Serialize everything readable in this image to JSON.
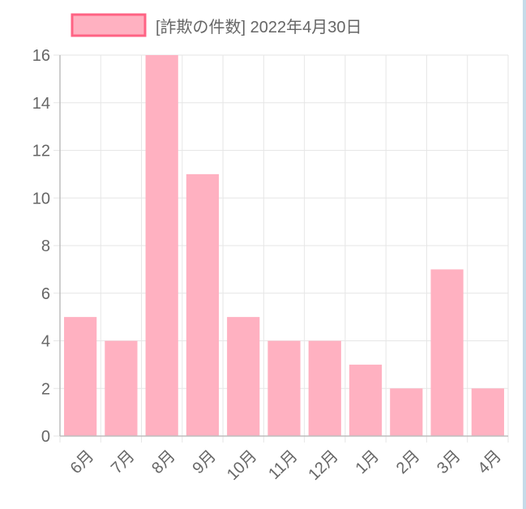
{
  "colors": {
    "bar_fill": "#ffb1c1",
    "bar_stroke": "#ff6384",
    "grid": "#e6e6e6",
    "axis": "#bdbdbd",
    "text": "#666666"
  },
  "chart_data": {
    "type": "bar",
    "legend": {
      "label": "[詐欺の件数] 2022年4月30日",
      "placement": "top"
    },
    "categories": [
      "6月",
      "7月",
      "8月",
      "9月",
      "10月",
      "11月",
      "12月",
      "1月",
      "2月",
      "3月",
      "4月"
    ],
    "series": [
      {
        "name": "[詐欺の件数] 2022年4月30日",
        "values": [
          5,
          4,
          16,
          11,
          5,
          4,
          4,
          3,
          2,
          7,
          2
        ]
      }
    ],
    "ylim": [
      0,
      16
    ],
    "yticks": [
      0,
      2,
      4,
      6,
      8,
      10,
      12,
      14,
      16
    ],
    "grid": true
  }
}
